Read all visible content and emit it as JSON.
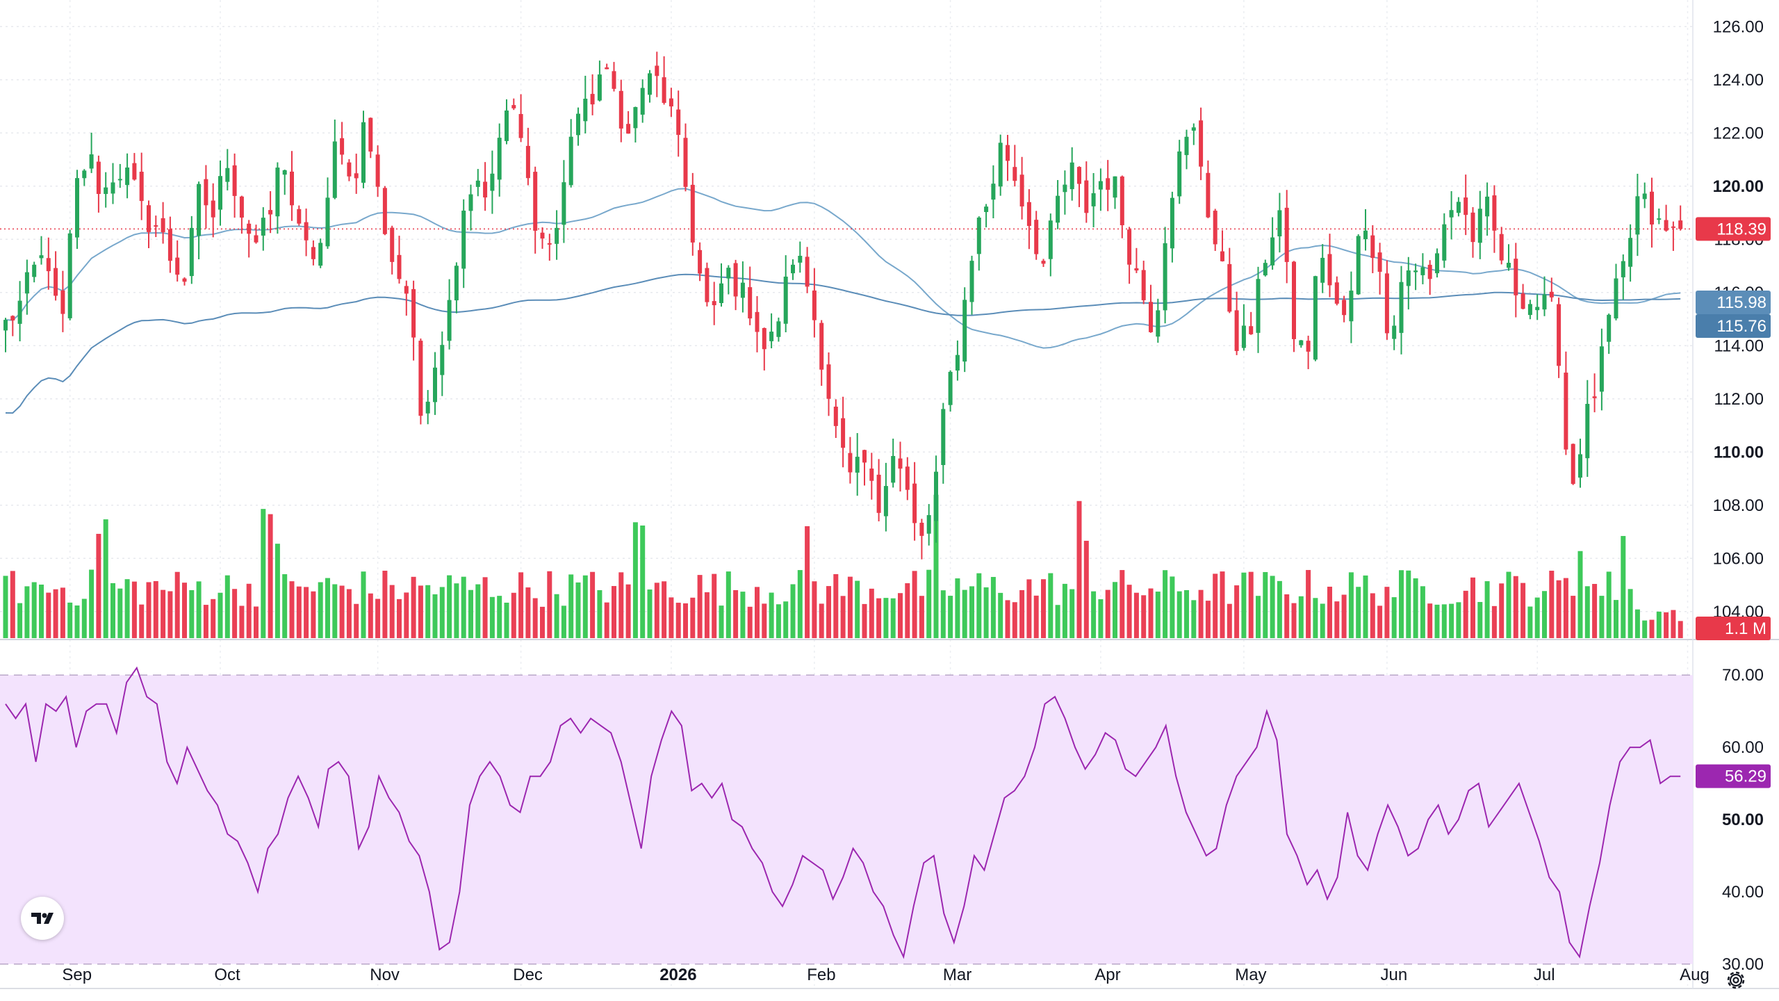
{
  "chart_data": [
    {
      "type": "candlestick",
      "title": "",
      "price_axis": {
        "range": [
          103,
          127
        ],
        "ticks": [
          "104.00",
          "106.00",
          "108.00",
          "110.00",
          "112.00",
          "114.00",
          "116.00",
          "118.00",
          "120.00",
          "122.00",
          "124.00",
          "126.00"
        ],
        "bold_ticks": [
          "110.00",
          "120.00"
        ]
      },
      "time_axis": {
        "labels": [
          {
            "text": "Sep",
            "bar": 9
          },
          {
            "text": "Oct",
            "bar": 30
          },
          {
            "text": "Nov",
            "bar": 52
          },
          {
            "text": "Dec",
            "bar": 72
          },
          {
            "text": "2026",
            "bar": 93,
            "bold": true
          },
          {
            "text": "Feb",
            "bar": 113
          },
          {
            "text": "Mar",
            "bar": 132
          },
          {
            "text": "Apr",
            "bar": 153
          },
          {
            "text": "May",
            "bar": 173
          },
          {
            "text": "Jun",
            "bar": 193
          },
          {
            "text": "Jul",
            "bar": 214
          },
          {
            "text": "Aug",
            "bar": 235
          }
        ]
      },
      "close_path": [
        114.8,
        115.5,
        116.8,
        117.5,
        114.2,
        119.8,
        121.2,
        119.6,
        120.7,
        120.3,
        118.8,
        118.5,
        117.2,
        116.5,
        119.8,
        118.9,
        121.1,
        119.1,
        117.8,
        118.6,
        121.4,
        118.4,
        117.3,
        118.0,
        122.4,
        119.8,
        122.6,
        119.4,
        117.1,
        116.0,
        111.4,
        113.4,
        115.3,
        119.2,
        120.4,
        119.6,
        122.9,
        122.4,
        119.3,
        117.6,
        118.6,
        122.7,
        122.8,
        124.3,
        123.5,
        121.8,
        123.8,
        124.0,
        122.9,
        120.4,
        117.0,
        114.7,
        116.9,
        116.1,
        115.3,
        113.6,
        115.4,
        117.6,
        116.2,
        113.5,
        110.7,
        108.9,
        109.6,
        107.7,
        110.3,
        108.8,
        106.3,
        108.2,
        112.2,
        114.6,
        118.2,
        119.5,
        121.7,
        120.2,
        118.6,
        117.0,
        119.4,
        120.6,
        119.1,
        120.2,
        120.3,
        117.9,
        116.2,
        114.5,
        119.4,
        121.4,
        122.1,
        118.7,
        116.5,
        114.1,
        114.6,
        117.4,
        119.2,
        114.6,
        113.5,
        117.9,
        115.4,
        115.0,
        119.0,
        117.3,
        114.4,
        116.8,
        117.0,
        116.3,
        118.9,
        119.5,
        118.1,
        119.2,
        117.4,
        116.2,
        115.7,
        115.5,
        115.2,
        108.3,
        110.9,
        112.6,
        115.4,
        117.1,
        119.7,
        118.7,
        118.2,
        118.4
      ],
      "ma_fast": {
        "color": "#78a8cc",
        "last": 115.98
      },
      "ma_slow": {
        "color": "#5b8db8",
        "last": 115.76
      },
      "colors": {
        "up": "#26a65b",
        "down": "#e8394a",
        "up_volume": "#3ec95a",
        "down_volume": "#ea4055"
      },
      "last_price": 118.39,
      "last_price_label": "118.39",
      "ma_fast_label": "115.98",
      "ma_slow_label": "115.76",
      "volume_label": "1.1 M",
      "bar_count": 235
    },
    {
      "type": "line",
      "name": "",
      "range": [
        27,
        73
      ],
      "ticks": [
        "30.00",
        "40.00",
        "50.00",
        "60.00",
        "70.00"
      ],
      "bold_ticks": [
        "50.00"
      ],
      "band": [
        30,
        70
      ],
      "color": "#9c27b0",
      "band_color": "#f3e3fd",
      "values": [
        66,
        64,
        66,
        58,
        66,
        65,
        67,
        60,
        65,
        66,
        66,
        62,
        69,
        71,
        67,
        66,
        58,
        55,
        60,
        57,
        54,
        52,
        48,
        47,
        44,
        40,
        46,
        48,
        53,
        56,
        53,
        49,
        57,
        58,
        56,
        46,
        49,
        56,
        53,
        51,
        47,
        45,
        40,
        32,
        33,
        40,
        52,
        56,
        58,
        56,
        52,
        51,
        56,
        56,
        58,
        63,
        64,
        62,
        64,
        63,
        62,
        58,
        52,
        46,
        56,
        61,
        65,
        63,
        54,
        55,
        53,
        55,
        50,
        49,
        46,
        44,
        40,
        38,
        41,
        45,
        44,
        43,
        39,
        42,
        46,
        44,
        40,
        38,
        34,
        31,
        38,
        44,
        45,
        37,
        33,
        38,
        45,
        43,
        48,
        53,
        54,
        56,
        60,
        66,
        67,
        64,
        60,
        57,
        59,
        62,
        61,
        57,
        56,
        58,
        60,
        63,
        56,
        51,
        48,
        45,
        46,
        52,
        56,
        58,
        60,
        65,
        61,
        48,
        45,
        41,
        43,
        39,
        42,
        51,
        45,
        43,
        48,
        52,
        49,
        45,
        46,
        50,
        52,
        48,
        50,
        54,
        55,
        49,
        51,
        53,
        55,
        51,
        47,
        42,
        40,
        33,
        31,
        38,
        44,
        52,
        58,
        60,
        60,
        61,
        55,
        56,
        56
      ]
    }
  ]
}
